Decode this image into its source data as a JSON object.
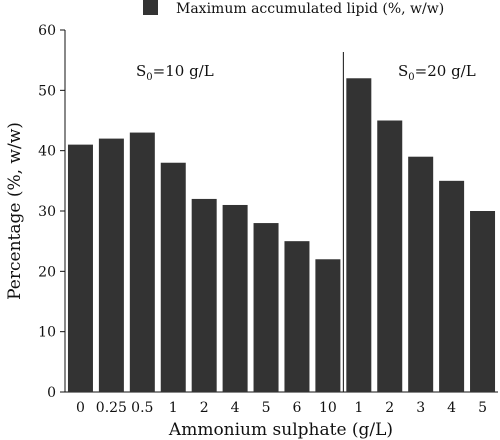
{
  "chart_data": {
    "type": "bar",
    "title": "",
    "xlabel": "Ammonium sulphate (g/L)",
    "ylabel": "Percentage (%, w/w)",
    "ylim": [
      0,
      60
    ],
    "yticks": [
      0,
      10,
      20,
      30,
      40,
      50,
      60
    ],
    "grid": false,
    "legend": {
      "position": "top",
      "entries": [
        "Maximum accumulated lipid (%, w/w)"
      ]
    },
    "bar_color": "#333333",
    "categories": [
      "0",
      "0.25",
      "0.5",
      "1",
      "2",
      "4",
      "5",
      "6",
      "10",
      "1",
      "2",
      "3",
      "4",
      "5"
    ],
    "series": [
      {
        "name": "Maximum accumulated lipid (%, w/w)",
        "values": [
          41,
          42,
          43,
          38,
          32,
          31,
          28,
          25,
          22,
          52,
          45,
          39,
          35,
          30
        ]
      }
    ],
    "groups": [
      {
        "label_main": "S",
        "label_sub": "0",
        "label_rest": "=10 g/L",
        "count": 9
      },
      {
        "label_main": "S",
        "label_sub": "0",
        "label_rest": "=20 g/L",
        "count": 5
      }
    ]
  }
}
